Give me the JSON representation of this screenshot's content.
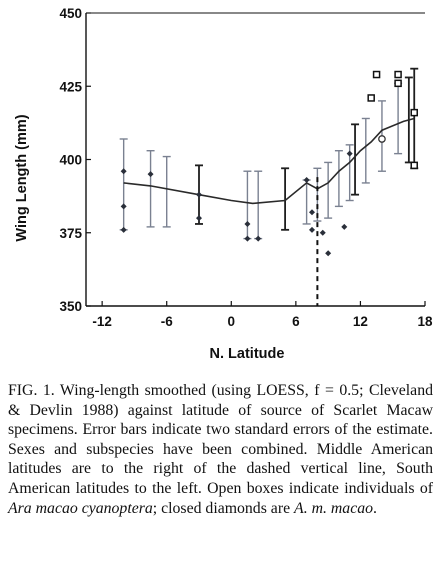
{
  "chart_data": {
    "type": "scatter",
    "xlabel": "N. Latitude",
    "ylabel": "Wing Length (mm)",
    "xlim": [
      -13.5,
      18
    ],
    "ylim": [
      350,
      450
    ],
    "xticks": [
      -12,
      -6,
      0,
      6,
      12,
      18
    ],
    "yticks": [
      350,
      375,
      400,
      425,
      450
    ],
    "grid": false,
    "legend": "none",
    "colors": {
      "light_bars": "#7a8191",
      "dark_bars": "#1e1e1e",
      "smooth_line": "#2a2a2a",
      "points": "#555c6c"
    },
    "dashed_line_x": 8,
    "loess_curve": {
      "x": [
        -10,
        -7.5,
        -3,
        0,
        2,
        5,
        7,
        8,
        9,
        10,
        11,
        12,
        13,
        14,
        16,
        17
      ],
      "y": [
        392,
        391,
        388,
        386,
        385,
        386,
        392,
        390,
        392,
        396,
        399,
        403,
        406,
        410,
        413,
        414
      ]
    },
    "error_bars": [
      {
        "x": -10,
        "low": 376,
        "high": 407,
        "shade": "light"
      },
      {
        "x": -7.5,
        "low": 377,
        "high": 403,
        "shade": "light"
      },
      {
        "x": -6,
        "low": 377,
        "high": 401,
        "shade": "light"
      },
      {
        "x": -3,
        "low": 378,
        "high": 398,
        "shade": "dark"
      },
      {
        "x": 1.5,
        "low": 373,
        "high": 396,
        "shade": "light"
      },
      {
        "x": 2.5,
        "low": 373,
        "high": 396,
        "shade": "light"
      },
      {
        "x": 5,
        "low": 376,
        "high": 397,
        "shade": "dark"
      },
      {
        "x": 7,
        "low": 378,
        "high": 393,
        "shade": "light"
      },
      {
        "x": 8,
        "low": 379,
        "high": 397,
        "shade": "light"
      },
      {
        "x": 9,
        "low": 380,
        "high": 399,
        "shade": "light"
      },
      {
        "x": 10,
        "low": 384,
        "high": 403,
        "shade": "light"
      },
      {
        "x": 11,
        "low": 386,
        "high": 405,
        "shade": "light"
      },
      {
        "x": 11.5,
        "low": 388,
        "high": 412,
        "shade": "dark"
      },
      {
        "x": 12.5,
        "low": 392,
        "high": 414,
        "shade": "light"
      },
      {
        "x": 14,
        "low": 396,
        "high": 420,
        "shade": "light"
      },
      {
        "x": 15.5,
        "low": 402,
        "high": 426,
        "shade": "light"
      },
      {
        "x": 16.5,
        "low": 399,
        "high": 428,
        "shade": "dark"
      },
      {
        "x": 17,
        "low": 397,
        "high": 431,
        "shade": "dark"
      }
    ],
    "open_boxes": [
      {
        "x": 13.5,
        "y": 429
      },
      {
        "x": 13,
        "y": 421
      },
      {
        "x": 15.5,
        "y": 429
      },
      {
        "x": 15.5,
        "y": 426
      },
      {
        "x": 17,
        "y": 416
      },
      {
        "x": 17,
        "y": 398
      }
    ],
    "closed_diamonds": [
      {
        "x": -10,
        "y": 396
      },
      {
        "x": -10,
        "y": 384
      },
      {
        "x": -10,
        "y": 376
      },
      {
        "x": -7.5,
        "y": 395
      },
      {
        "x": -3,
        "y": 388
      },
      {
        "x": -3,
        "y": 380
      },
      {
        "x": 1.5,
        "y": 378
      },
      {
        "x": 1.5,
        "y": 373
      },
      {
        "x": 2.5,
        "y": 373
      },
      {
        "x": 7,
        "y": 393
      },
      {
        "x": 7.5,
        "y": 382
      },
      {
        "x": 7.5,
        "y": 376
      },
      {
        "x": 8.5,
        "y": 375
      },
      {
        "x": 9,
        "y": 368
      },
      {
        "x": 10.5,
        "y": 377
      },
      {
        "x": 11,
        "y": 402
      }
    ],
    "open_circles": [
      {
        "x": 14,
        "y": 407
      }
    ]
  },
  "caption": {
    "lead": "FIG. 1. Wing-length smoothed (using LOESS, f = 0.5; Cleveland & Devlin 1988) against latitude of source of Scarlet Macaw specimens. Error bars indicate two standard errors of the estimate. Sexes and subspecies have been combined. Middle American latitudes are to the right of the dashed vertical line, South American latitudes to the left. Open boxes indicate individuals of ",
    "italic1": "Ara macao cyanoptera",
    "mid": "; closed diamonds are ",
    "italic2": "A. m. macao",
    "end": "."
  }
}
